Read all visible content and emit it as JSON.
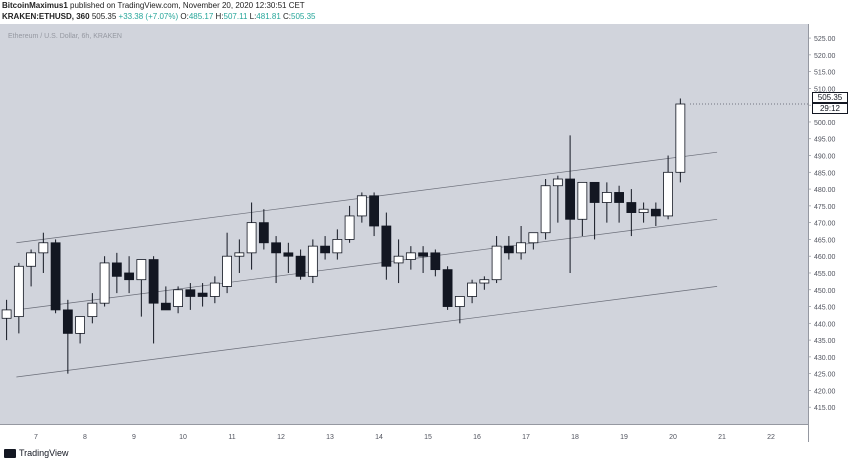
{
  "header": {
    "author": "BitcoinMaximus1",
    "published_text": "published on TradingView.com, November 20, 2020 12:30:51 CET",
    "symbol": "KRAKEN:ETHUSD, 360",
    "last": "505.35",
    "change": "+33.38 (+7.07%)",
    "o_label": "O:",
    "o_value": "485.17",
    "h_label": "H:",
    "h_value": "507.11",
    "l_label": "L:",
    "l_value": "481.81",
    "c_label": "C:",
    "c_value": "505.35"
  },
  "watermark": "Ethereum / U.S. Dollar, 6h, KRAKEN",
  "price_badge": "505.35",
  "timer_badge": "29:12",
  "footer": {
    "brand": "TradingView"
  },
  "colors": {
    "background": "#d1d4dc",
    "up_candle": "#ffffff",
    "down_candle": "#131722",
    "channel": "#6a6d78",
    "change_text": "#26a69a"
  },
  "chart_data": {
    "type": "candlestick",
    "title": "Ethereum / U.S. Dollar, 6h, KRAKEN",
    "ylim": [
      410,
      528
    ],
    "y_ticks": [
      415,
      420,
      425,
      430,
      435,
      440,
      445,
      450,
      455,
      460,
      465,
      470,
      475,
      480,
      485,
      490,
      495,
      500,
      505,
      510,
      515,
      520,
      525
    ],
    "x_ticks": [
      {
        "day": 7,
        "label": "7"
      },
      {
        "day": 8,
        "label": "8"
      },
      {
        "day": 9,
        "label": "9"
      },
      {
        "day": 10,
        "label": "10"
      },
      {
        "day": 11,
        "label": "11"
      },
      {
        "day": 12,
        "label": "12"
      },
      {
        "day": 13,
        "label": "13"
      },
      {
        "day": 14,
        "label": "14"
      },
      {
        "day": 15,
        "label": "15"
      },
      {
        "day": 16,
        "label": "16"
      },
      {
        "day": 17,
        "label": "17"
      },
      {
        "day": 18,
        "label": "18"
      },
      {
        "day": 19,
        "label": "19"
      },
      {
        "day": 20,
        "label": "20"
      },
      {
        "day": 21,
        "label": "21"
      },
      {
        "day": 22,
        "label": "22"
      }
    ],
    "candles": [
      {
        "day": 6.4,
        "o": 441.5,
        "h": 447,
        "l": 435,
        "c": 444
      },
      {
        "day": 6.65,
        "o": 442,
        "h": 458,
        "l": 437,
        "c": 457
      },
      {
        "day": 6.9,
        "o": 457,
        "h": 462,
        "l": 451,
        "c": 461
      },
      {
        "day": 7.15,
        "o": 461,
        "h": 467,
        "l": 455,
        "c": 464
      },
      {
        "day": 7.4,
        "o": 464,
        "h": 465,
        "l": 443,
        "c": 444
      },
      {
        "day": 7.65,
        "o": 444,
        "h": 447,
        "l": 425,
        "c": 437
      },
      {
        "day": 7.9,
        "o": 437,
        "h": 442,
        "l": 434,
        "c": 442
      },
      {
        "day": 8.15,
        "o": 442,
        "h": 449,
        "l": 440,
        "c": 446
      },
      {
        "day": 8.4,
        "o": 446,
        "h": 460,
        "l": 445,
        "c": 458
      },
      {
        "day": 8.65,
        "o": 458,
        "h": 461,
        "l": 449,
        "c": 454
      },
      {
        "day": 8.9,
        "o": 455,
        "h": 460,
        "l": 449,
        "c": 453
      },
      {
        "day": 9.15,
        "o": 453,
        "h": 459,
        "l": 442,
        "c": 459
      },
      {
        "day": 9.4,
        "o": 459,
        "h": 460,
        "l": 434,
        "c": 446
      },
      {
        "day": 9.65,
        "o": 446,
        "h": 451,
        "l": 444,
        "c": 444
      },
      {
        "day": 9.9,
        "o": 445,
        "h": 451,
        "l": 443,
        "c": 450
      },
      {
        "day": 10.15,
        "o": 450,
        "h": 452,
        "l": 444,
        "c": 448
      },
      {
        "day": 10.4,
        "o": 449,
        "h": 452,
        "l": 445,
        "c": 448
      },
      {
        "day": 10.65,
        "o": 448,
        "h": 454,
        "l": 446,
        "c": 452
      },
      {
        "day": 10.9,
        "o": 451,
        "h": 467,
        "l": 449,
        "c": 460
      },
      {
        "day": 11.15,
        "o": 460,
        "h": 465,
        "l": 455,
        "c": 461
      },
      {
        "day": 11.4,
        "o": 461,
        "h": 476,
        "l": 456,
        "c": 470
      },
      {
        "day": 11.65,
        "o": 470,
        "h": 474,
        "l": 462,
        "c": 464
      },
      {
        "day": 11.9,
        "o": 464,
        "h": 466,
        "l": 452,
        "c": 461
      },
      {
        "day": 12.15,
        "o": 461,
        "h": 464,
        "l": 455,
        "c": 460
      },
      {
        "day": 12.4,
        "o": 460,
        "h": 462,
        "l": 453,
        "c": 454
      },
      {
        "day": 12.65,
        "o": 454,
        "h": 465,
        "l": 452,
        "c": 463
      },
      {
        "day": 12.9,
        "o": 463,
        "h": 466,
        "l": 459,
        "c": 461
      },
      {
        "day": 13.15,
        "o": 461,
        "h": 468,
        "l": 459,
        "c": 465
      },
      {
        "day": 13.4,
        "o": 465,
        "h": 475,
        "l": 464,
        "c": 472
      },
      {
        "day": 13.65,
        "o": 472,
        "h": 479,
        "l": 470,
        "c": 478
      },
      {
        "day": 13.9,
        "o": 478,
        "h": 479,
        "l": 466,
        "c": 469
      },
      {
        "day": 14.15,
        "o": 469,
        "h": 473,
        "l": 453,
        "c": 457
      },
      {
        "day": 14.4,
        "o": 458,
        "h": 465,
        "l": 452,
        "c": 460
      },
      {
        "day": 14.65,
        "o": 459,
        "h": 463,
        "l": 456,
        "c": 461
      },
      {
        "day": 14.9,
        "o": 461,
        "h": 463,
        "l": 455,
        "c": 460
      },
      {
        "day": 15.15,
        "o": 461,
        "h": 462,
        "l": 454,
        "c": 456
      },
      {
        "day": 15.4,
        "o": 456,
        "h": 457,
        "l": 444,
        "c": 445
      },
      {
        "day": 15.65,
        "o": 445,
        "h": 448,
        "l": 440,
        "c": 448
      },
      {
        "day": 15.9,
        "o": 448,
        "h": 453,
        "l": 446,
        "c": 452
      },
      {
        "day": 16.15,
        "o": 452,
        "h": 454,
        "l": 450,
        "c": 453
      },
      {
        "day": 16.4,
        "o": 453,
        "h": 466,
        "l": 452,
        "c": 463
      },
      {
        "day": 16.65,
        "o": 463,
        "h": 466,
        "l": 459,
        "c": 461
      },
      {
        "day": 16.9,
        "o": 461,
        "h": 469,
        "l": 459,
        "c": 464
      },
      {
        "day": 17.15,
        "o": 464,
        "h": 467,
        "l": 462,
        "c": 467
      },
      {
        "day": 17.4,
        "o": 467,
        "h": 483,
        "l": 465,
        "c": 481
      },
      {
        "day": 17.65,
        "o": 481,
        "h": 484,
        "l": 470,
        "c": 483
      },
      {
        "day": 17.9,
        "o": 483,
        "h": 496,
        "l": 455,
        "c": 471
      },
      {
        "day": 18.15,
        "o": 471,
        "h": 482,
        "l": 466,
        "c": 482
      },
      {
        "day": 18.4,
        "o": 482,
        "h": 482,
        "l": 465,
        "c": 476
      },
      {
        "day": 18.65,
        "o": 476,
        "h": 482,
        "l": 470,
        "c": 479
      },
      {
        "day": 18.9,
        "o": 479,
        "h": 481,
        "l": 470,
        "c": 476
      },
      {
        "day": 19.15,
        "o": 476,
        "h": 480,
        "l": 466,
        "c": 473
      },
      {
        "day": 19.4,
        "o": 473,
        "h": 476,
        "l": 470,
        "c": 474
      },
      {
        "day": 19.65,
        "o": 474,
        "h": 476,
        "l": 469,
        "c": 472
      },
      {
        "day": 19.9,
        "o": 472,
        "h": 490,
        "l": 471,
        "c": 485
      },
      {
        "day": 20.15,
        "o": 485,
        "h": 507,
        "l": 482,
        "c": 505.35
      }
    ],
    "channel_lines": [
      {
        "name": "upper",
        "start": {
          "day": 6.6,
          "price": 464
        },
        "end": {
          "day": 20.9,
          "price": 491
        }
      },
      {
        "name": "middle",
        "start": {
          "day": 6.6,
          "price": 444
        },
        "end": {
          "day": 20.9,
          "price": 471
        }
      },
      {
        "name": "lower",
        "start": {
          "day": 6.6,
          "price": 424
        },
        "end": {
          "day": 20.9,
          "price": 451
        }
      }
    ]
  }
}
